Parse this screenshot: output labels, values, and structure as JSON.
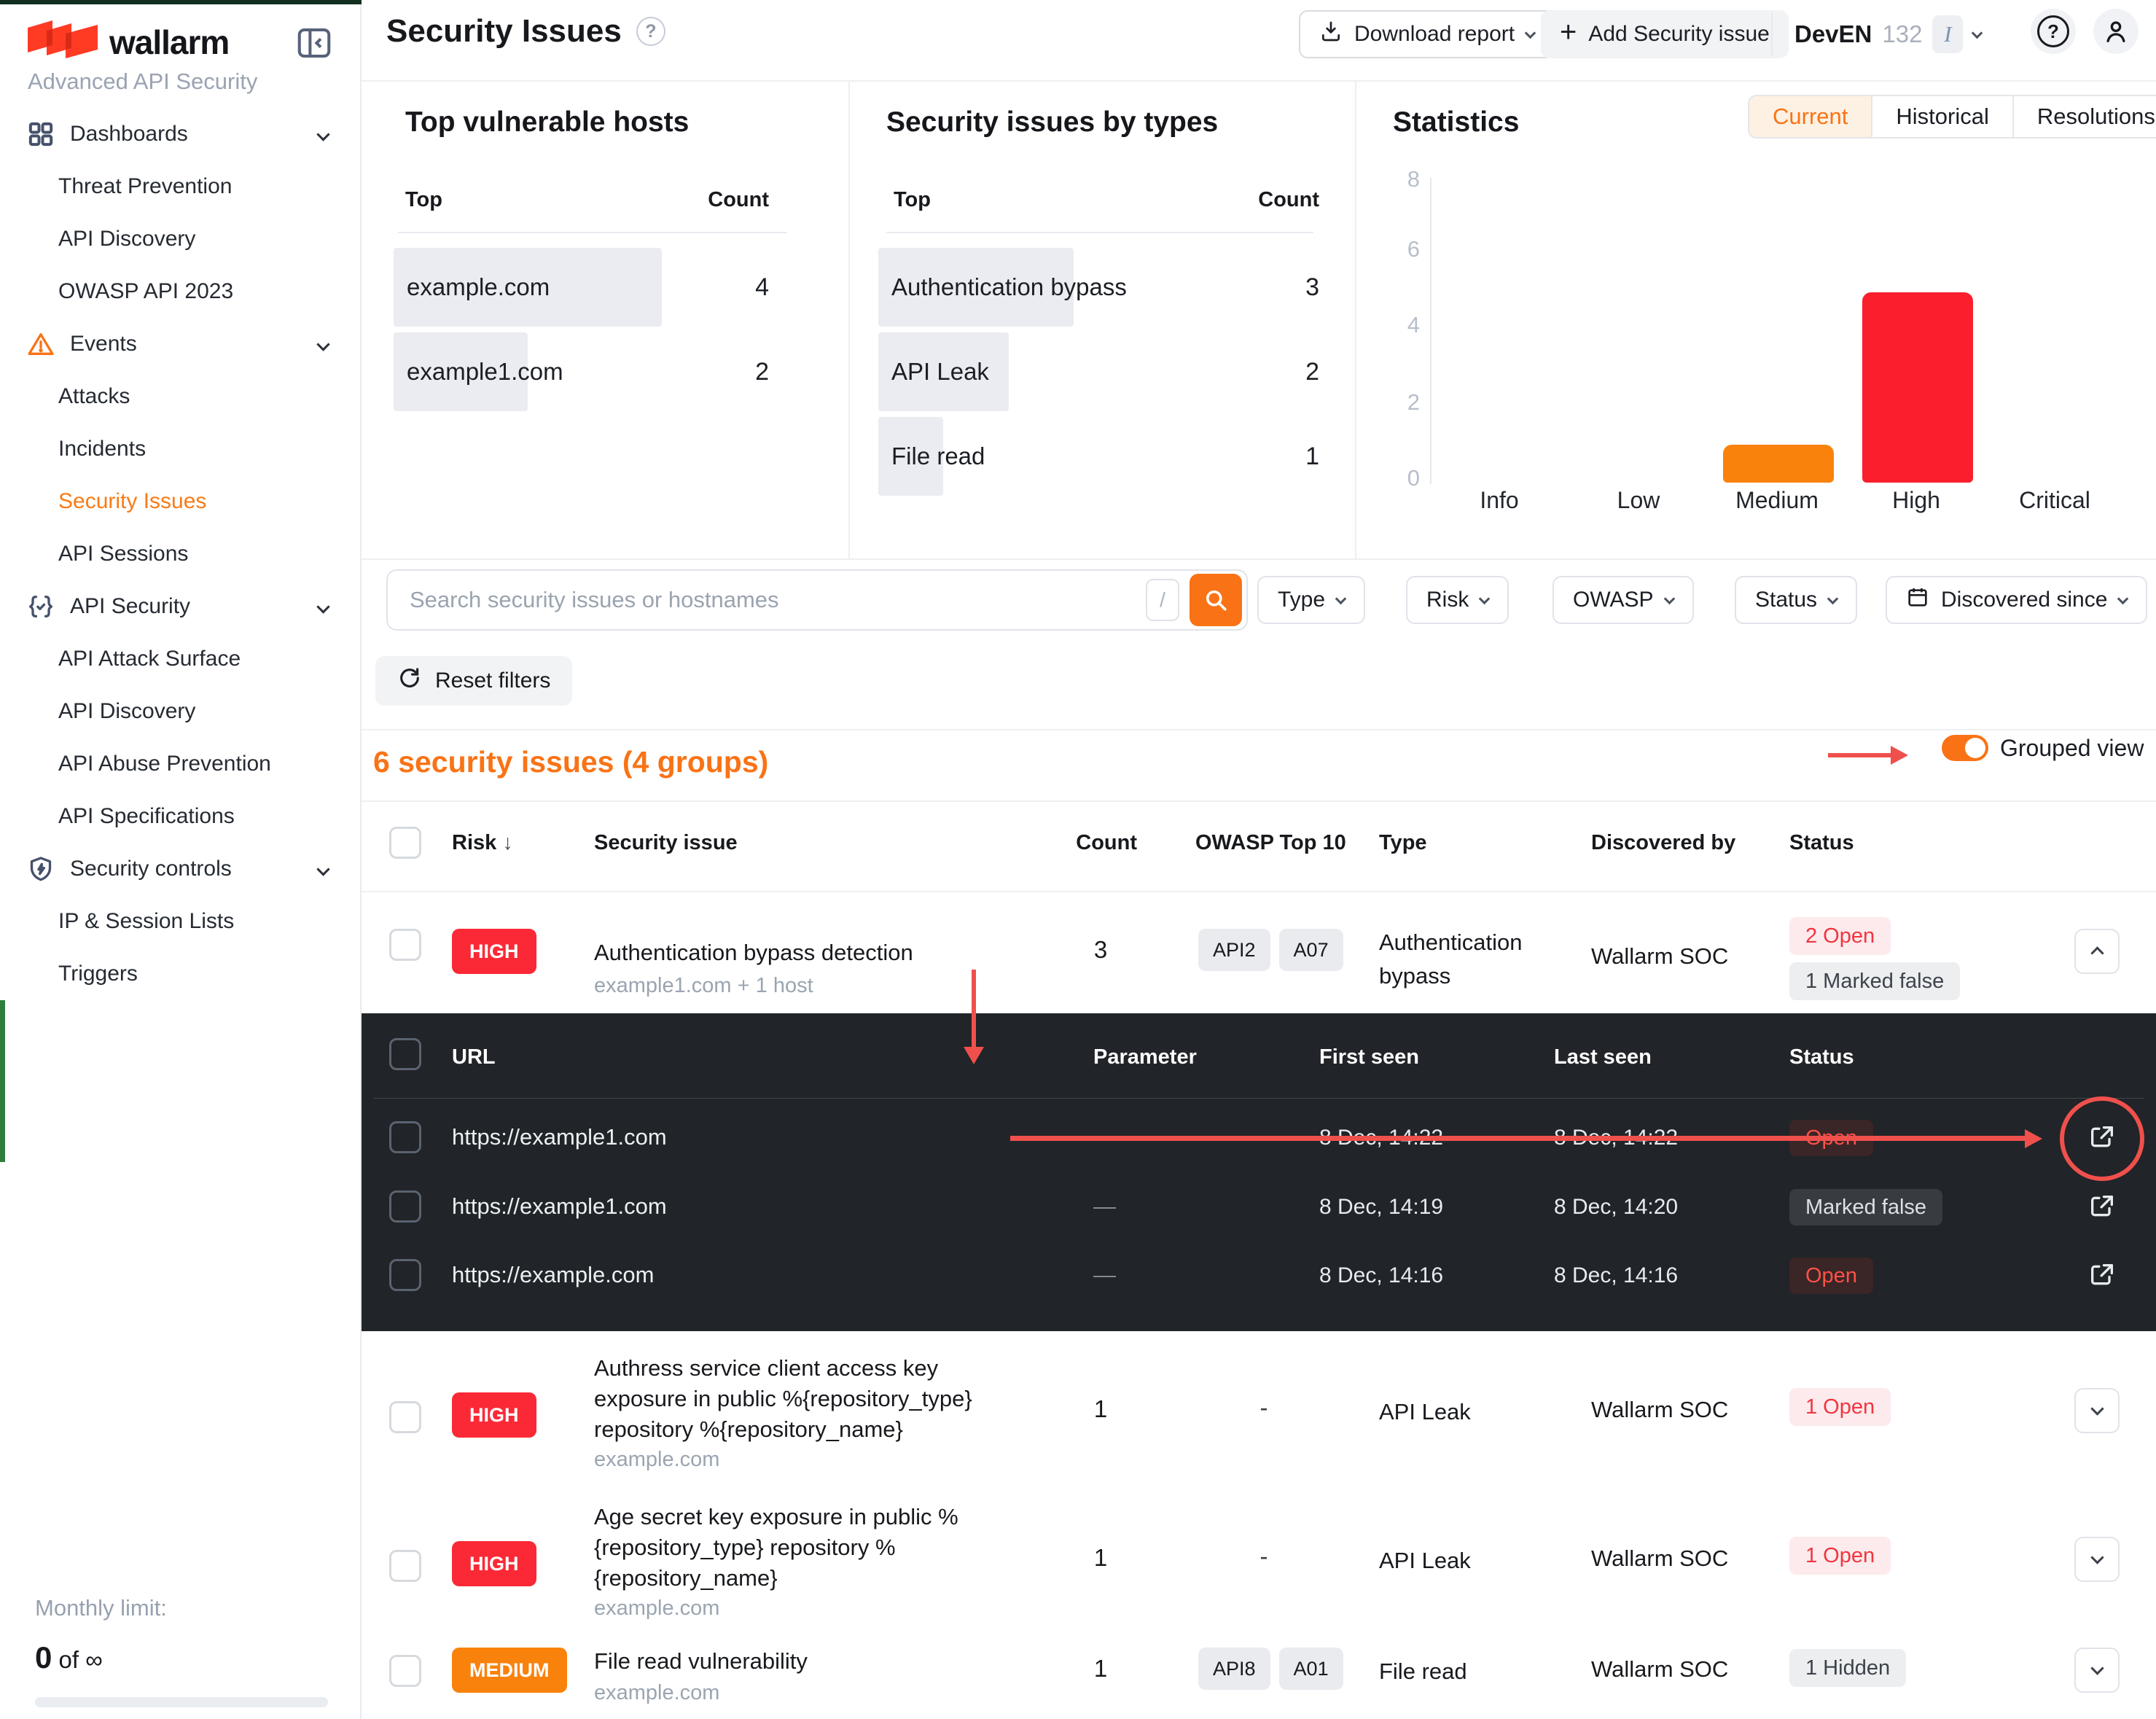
{
  "colors": {
    "accent_orange": "#f97316",
    "brand_red": "#ff3b24",
    "risk_high": "#fb2936",
    "risk_medium": "#f9820c",
    "status_open_text": "#f2353f",
    "annotation_red": "#f0504c",
    "dark_section_bg": "#212428"
  },
  "sidebar": {
    "logo": "wallarm",
    "subtitle": "Advanced API Security",
    "items": [
      {
        "label": "Dashboards",
        "kind": "section",
        "icon": "grid-icon",
        "chevron": true
      },
      {
        "label": "Threat Prevention",
        "kind": "child"
      },
      {
        "label": "API Discovery",
        "kind": "child"
      },
      {
        "label": "OWASP API 2023",
        "kind": "child"
      },
      {
        "label": "Events",
        "kind": "section",
        "icon": "warning-icon",
        "chevron": true
      },
      {
        "label": "Attacks",
        "kind": "child"
      },
      {
        "label": "Incidents",
        "kind": "child"
      },
      {
        "label": "Security Issues",
        "kind": "child",
        "active": true
      },
      {
        "label": "API Sessions",
        "kind": "child"
      },
      {
        "label": "API Security",
        "kind": "section",
        "icon": "braces-icon",
        "chevron": true
      },
      {
        "label": "API Attack Surface",
        "kind": "child"
      },
      {
        "label": "API Discovery",
        "kind": "child"
      },
      {
        "label": "API Abuse Prevention",
        "kind": "child"
      },
      {
        "label": "API Specifications",
        "kind": "child"
      },
      {
        "label": "Security controls",
        "kind": "section",
        "icon": "shield-icon",
        "chevron": true
      },
      {
        "label": "IP & Session Lists",
        "kind": "child"
      },
      {
        "label": "Triggers",
        "kind": "child"
      }
    ],
    "monthly_limit": {
      "label": "Monthly limit:",
      "used": "0",
      "of_text": "of",
      "limit": "∞"
    }
  },
  "header": {
    "title": "Security Issues",
    "download_report": "Download report",
    "add_security_issue": "Add Security issue",
    "env_name": "DevEN",
    "env_count": "132",
    "env_badge": "I"
  },
  "panels": {
    "hosts": {
      "title": "Top vulnerable hosts",
      "col_top": "Top",
      "col_count": "Count",
      "rows": [
        {
          "label": "example.com",
          "count": 4
        },
        {
          "label": "example1.com",
          "count": 2
        }
      ]
    },
    "types": {
      "title": "Security issues by types",
      "col_top": "Top",
      "col_count": "Count",
      "rows": [
        {
          "label": "Authentication bypass",
          "count": 3
        },
        {
          "label": "API Leak",
          "count": 2
        },
        {
          "label": "File read",
          "count": 1
        }
      ]
    },
    "statistics": {
      "title": "Statistics",
      "tabs": [
        "Current",
        "Historical",
        "Resolutions"
      ],
      "active_tab": "Current"
    }
  },
  "chart_data": {
    "type": "bar",
    "title": "Statistics",
    "categories": [
      "Info",
      "Low",
      "Medium",
      "High",
      "Critical"
    ],
    "values": [
      0,
      0,
      1,
      5,
      0
    ],
    "colors": {
      "Medium": "#f9820c",
      "High": "#fb1f2e"
    },
    "ylim": [
      0,
      8
    ],
    "yticks": [
      8,
      6,
      4,
      2,
      0
    ],
    "xlabel": "",
    "ylabel": "",
    "grid": false,
    "legend": false
  },
  "filters": {
    "search_placeholder": "Search security issues or hostnames",
    "shortcut_key": "/",
    "type": "Type",
    "risk": "Risk",
    "owasp": "OWASP",
    "status": "Status",
    "discovered_since": "Discovered since",
    "reset": "Reset filters"
  },
  "list": {
    "summary": "6 security issues (4 groups)",
    "grouped_view_label": "Grouped view",
    "columns": {
      "risk": "Risk",
      "issue": "Security issue",
      "count": "Count",
      "owasp": "OWASP Top 10",
      "type": "Type",
      "discovered_by": "Discovered by",
      "status": "Status"
    },
    "rows": [
      {
        "risk": "HIGH",
        "title": "Authentication bypass detection",
        "host": "example1.com + 1 host",
        "count": "3",
        "owasp": [
          "API2",
          "A07"
        ],
        "type": "Authentication bypass",
        "discovered_by": "Wallarm SOC",
        "statuses": [
          {
            "text": "2 Open",
            "kind": "open"
          },
          {
            "text": "1 Marked false",
            "kind": "muted"
          }
        ]
      },
      {
        "risk": "HIGH",
        "title": "Authress service client access key exposure in public %{repository_type} repository %{repository_name}",
        "host": "example.com",
        "count": "1",
        "owasp_dash": "-",
        "type": "API Leak",
        "discovered_by": "Wallarm SOC",
        "statuses": [
          {
            "text": "1 Open",
            "kind": "open"
          }
        ]
      },
      {
        "risk": "HIGH",
        "title": "Age secret key exposure in public %{repository_type} repository %{repository_name}",
        "host": "example.com",
        "count": "1",
        "owasp_dash": "-",
        "type": "API Leak",
        "discovered_by": "Wallarm SOC",
        "statuses": [
          {
            "text": "1 Open",
            "kind": "open"
          }
        ]
      },
      {
        "risk": "MEDIUM",
        "title": "File read vulnerability",
        "host": "example.com",
        "count": "1",
        "owasp": [
          "API8",
          "A01"
        ],
        "type": "File read",
        "discovered_by": "Wallarm SOC",
        "statuses": [
          {
            "text": "1 Hidden",
            "kind": "muted"
          }
        ]
      }
    ]
  },
  "expanded": {
    "columns": {
      "url": "URL",
      "parameter": "Parameter",
      "first_seen": "First seen",
      "last_seen": "Last seen",
      "status": "Status"
    },
    "rows": [
      {
        "url": "https://example1.com",
        "parameter": "—",
        "first_seen": "8 Dec, 14:22",
        "last_seen": "8 Dec, 14:22",
        "status": "Open",
        "kind": "open"
      },
      {
        "url": "https://example1.com",
        "parameter": "—",
        "first_seen": "8 Dec, 14:19",
        "last_seen": "8 Dec, 14:20",
        "status": "Marked false",
        "kind": "muted"
      },
      {
        "url": "https://example.com",
        "parameter": "—",
        "first_seen": "8 Dec, 14:16",
        "last_seen": "8 Dec, 14:16",
        "status": "Open",
        "kind": "open"
      }
    ]
  }
}
